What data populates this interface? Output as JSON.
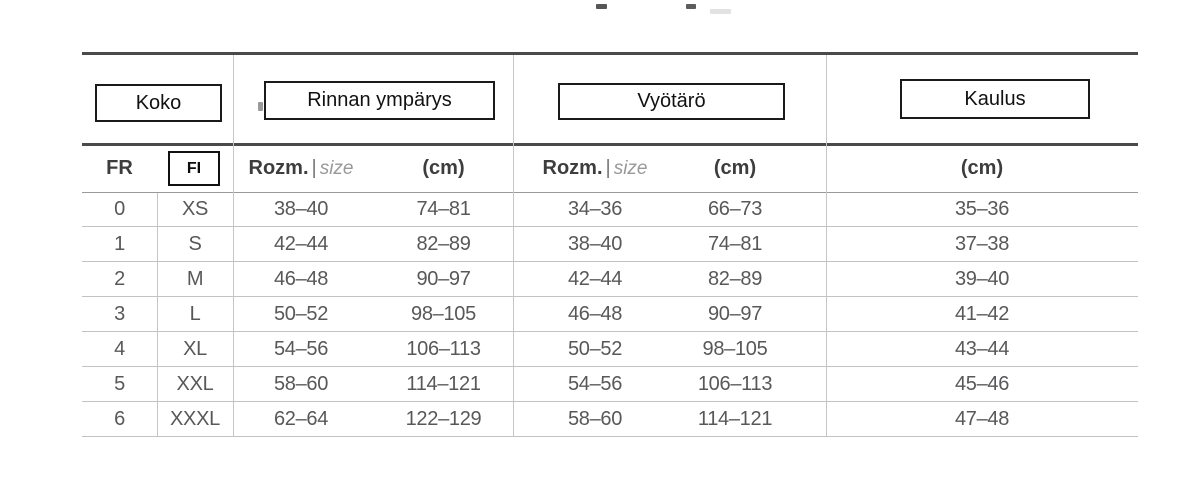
{
  "group_headers": {
    "koko": "Koko",
    "chest": "Rinnan ympärys",
    "waist": "Vyötärö",
    "collar": "Kaulus"
  },
  "column_headers": {
    "fr": "FR",
    "fi": "FI",
    "rozm": "Rozm.",
    "pipe": "|",
    "size": "size",
    "cm": "(cm)"
  },
  "rows": [
    {
      "fr": "0",
      "fi": "XS",
      "chest_rozm": "38–40",
      "chest_cm": "74–81",
      "waist_rozm": "34–36",
      "waist_cm": "66–73",
      "collar_cm": "35–36"
    },
    {
      "fr": "1",
      "fi": "S",
      "chest_rozm": "42–44",
      "chest_cm": "82–89",
      "waist_rozm": "38–40",
      "waist_cm": "74–81",
      "collar_cm": "37–38"
    },
    {
      "fr": "2",
      "fi": "M",
      "chest_rozm": "46–48",
      "chest_cm": "90–97",
      "waist_rozm": "42–44",
      "waist_cm": "82–89",
      "collar_cm": "39–40"
    },
    {
      "fr": "3",
      "fi": "L",
      "chest_rozm": "50–52",
      "chest_cm": "98–105",
      "waist_rozm": "46–48",
      "waist_cm": "90–97",
      "collar_cm": "41–42"
    },
    {
      "fr": "4",
      "fi": "XL",
      "chest_rozm": "54–56",
      "chest_cm": "106–113",
      "waist_rozm": "50–52",
      "waist_cm": "98–105",
      "collar_cm": "43–44"
    },
    {
      "fr": "5",
      "fi": "XXL",
      "chest_rozm": "58–60",
      "chest_cm": "114–121",
      "waist_rozm": "54–56",
      "waist_cm": "106–113",
      "collar_cm": "45–46"
    },
    {
      "fr": "6",
      "fi": "XXXL",
      "chest_rozm": "62–64",
      "chest_cm": "122–129",
      "waist_rozm": "58–60",
      "waist_cm": "114–121",
      "collar_cm": "47–48"
    }
  ],
  "colors": {
    "thick_line": "#4a4a4a",
    "row_line": "#c3c3c3",
    "header_underline": "#9a9a9a",
    "vertical_line": "#c6c6c6",
    "data_text": "#58585a",
    "header_text": "#3d3d3d",
    "size_italic_text": "#999999",
    "overlay_border": "#1a1a1a",
    "background": "#ffffff"
  },
  "chart_data": {
    "type": "table",
    "title": "Size chart (Koko / Rinnan ympärys / Vyötärö / Kaulus)",
    "columns": [
      "FR",
      "FI",
      "Rinnan ympärys Rozm.|size",
      "Rinnan ympärys (cm)",
      "Vyötärö Rozm.|size",
      "Vyötärö (cm)",
      "Kaulus (cm)"
    ],
    "rows": [
      [
        "0",
        "XS",
        "38–40",
        "74–81",
        "34–36",
        "66–73",
        "35–36"
      ],
      [
        "1",
        "S",
        "42–44",
        "82–89",
        "38–40",
        "74–81",
        "37–38"
      ],
      [
        "2",
        "M",
        "46–48",
        "90–97",
        "42–44",
        "82–89",
        "39–40"
      ],
      [
        "3",
        "L",
        "50–52",
        "98–105",
        "46–48",
        "90–97",
        "41–42"
      ],
      [
        "4",
        "XL",
        "54–56",
        "106–113",
        "50–52",
        "98–105",
        "43–44"
      ],
      [
        "5",
        "XXL",
        "58–60",
        "114–121",
        "54–56",
        "106–113",
        "45–46"
      ],
      [
        "6",
        "XXXL",
        "62–64",
        "122–129",
        "58–60",
        "114–121",
        "47–48"
      ]
    ]
  }
}
